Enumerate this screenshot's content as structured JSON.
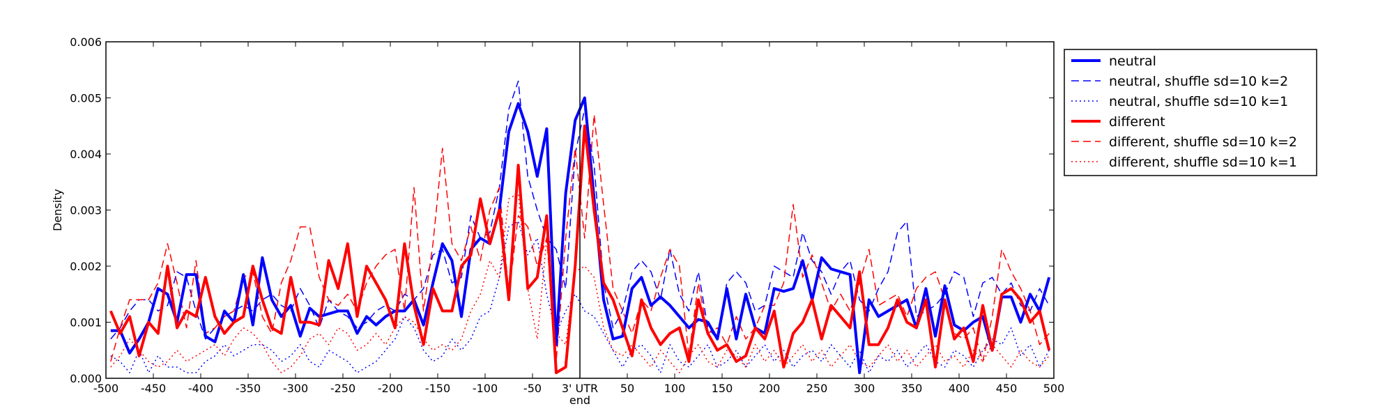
{
  "chart_data": {
    "type": "line",
    "xlabel": "end",
    "ylabel": "Density",
    "xlim": [
      -500,
      500
    ],
    "ylim": [
      0,
      0.006
    ],
    "grid": false,
    "legend_position": "outside-right-top",
    "x_ticks": [
      -500,
      -450,
      -400,
      -350,
      -300,
      -250,
      -200,
      -150,
      -100,
      -50,
      0,
      50,
      100,
      150,
      200,
      250,
      300,
      350,
      400,
      450,
      500
    ],
    "x_tick_labels": [
      "-500",
      "-450",
      "-400",
      "-350",
      "-300",
      "-250",
      "-200",
      "-150",
      "-100",
      "-50",
      "3' UTR",
      "50",
      "100",
      "150",
      "200",
      "250",
      "300",
      "350",
      "400",
      "450",
      "500"
    ],
    "y_ticks": [
      0,
      0.001,
      0.002,
      0.003,
      0.004,
      0.005,
      0.006
    ],
    "y_tick_labels": [
      "0.000",
      "0.001",
      "0.002",
      "0.003",
      "0.004",
      "0.005",
      "0.006"
    ],
    "vertical_line_x": 0,
    "x": [
      -495,
      -485,
      -475,
      -465,
      -455,
      -445,
      -435,
      -425,
      -415,
      -405,
      -395,
      -385,
      -375,
      -365,
      -355,
      -345,
      -335,
      -325,
      -315,
      -305,
      -295,
      -285,
      -275,
      -265,
      -255,
      -245,
      -235,
      -225,
      -215,
      -205,
      -195,
      -185,
      -175,
      -165,
      -155,
      -145,
      -135,
      -125,
      -115,
      -105,
      -95,
      -85,
      -75,
      -65,
      -55,
      -45,
      -35,
      -25,
      -15,
      -5,
      5,
      15,
      25,
      35,
      45,
      55,
      65,
      75,
      85,
      95,
      105,
      115,
      125,
      135,
      145,
      155,
      165,
      175,
      185,
      195,
      205,
      215,
      225,
      235,
      245,
      255,
      265,
      275,
      285,
      295,
      305,
      315,
      325,
      335,
      345,
      355,
      365,
      375,
      385,
      395,
      405,
      415,
      425,
      435,
      445,
      455,
      465,
      475,
      485,
      495
    ],
    "series": [
      {
        "name": "neutral",
        "color": "#0000ff",
        "style": "solid",
        "width": 4,
        "values": [
          0.00085,
          0.00085,
          0.00045,
          0.0007,
          0.001,
          0.0016,
          0.0015,
          0.001,
          0.00185,
          0.00185,
          0.00075,
          0.00065,
          0.0012,
          0.001,
          0.00185,
          0.00095,
          0.00215,
          0.0014,
          0.0011,
          0.0013,
          0.00075,
          0.00125,
          0.0011,
          0.00115,
          0.0012,
          0.0012,
          0.0008,
          0.0011,
          0.00095,
          0.0011,
          0.0012,
          0.0012,
          0.0014,
          0.00095,
          0.0017,
          0.0024,
          0.0021,
          0.0011,
          0.0023,
          0.0025,
          0.0024,
          0.003,
          0.0044,
          0.0049,
          0.0044,
          0.0036,
          0.00445,
          0.0006,
          0.0033,
          0.0046,
          0.005,
          0.0032,
          0.0014,
          0.0007,
          0.00075,
          0.0016,
          0.0018,
          0.0013,
          0.00145,
          0.0013,
          0.0011,
          0.0009,
          0.00105,
          0.001,
          0.0007,
          0.0016,
          0.0007,
          0.0015,
          0.0009,
          0.0008,
          0.0016,
          0.00155,
          0.0016,
          0.0021,
          0.0014,
          0.00215,
          0.00195,
          0.0019,
          0.00185,
          0.0001,
          0.0014,
          0.0011,
          0.0012,
          0.0013,
          0.0014,
          0.0009,
          0.0016,
          0.00075,
          0.00165,
          0.00095,
          0.00085,
          0.001,
          0.0011,
          0.0005,
          0.00145,
          0.00145,
          0.001,
          0.0015,
          0.0012,
          0.0018
        ]
      },
      {
        "name": "neutral, shuffle sd=10 k=2",
        "color": "#0000ff",
        "style": "dashed",
        "width": 1.5,
        "values": [
          0.0007,
          0.0009,
          0.0012,
          0.0014,
          0.0014,
          0.0012,
          0.0013,
          0.0019,
          0.0018,
          0.0012,
          0.0007,
          0.0009,
          0.0011,
          0.0012,
          0.0013,
          0.0012,
          0.0014,
          0.0015,
          0.0013,
          0.0012,
          0.0016,
          0.0013,
          0.0009,
          0.0014,
          0.0012,
          0.0011,
          0.0009,
          0.001,
          0.0012,
          0.0013,
          0.0012,
          0.0015,
          0.0014,
          0.0016,
          0.0022,
          0.0023,
          0.0017,
          0.0018,
          0.0029,
          0.0025,
          0.0026,
          0.0034,
          0.0048,
          0.0053,
          0.0036,
          0.003,
          0.0025,
          0.0023,
          0.0016,
          0.004,
          0.0048,
          0.0038,
          0.0017,
          0.0009,
          0.0012,
          0.0019,
          0.0021,
          0.0019,
          0.0014,
          0.0023,
          0.0015,
          0.0012,
          0.0019,
          0.0009,
          0.0007,
          0.0017,
          0.0019,
          0.0017,
          0.0012,
          0.0013,
          0.002,
          0.0019,
          0.0018,
          0.0026,
          0.0021,
          0.0019,
          0.0015,
          0.0019,
          0.0021,
          0.0014,
          0.0012,
          0.0016,
          0.0019,
          0.0026,
          0.0028,
          0.0011,
          0.0012,
          0.0013,
          0.0015,
          0.0019,
          0.0018,
          0.0011,
          0.0017,
          0.0018,
          0.0015,
          0.0017,
          0.0013,
          0.0012,
          0.0016,
          0.0013
        ]
      },
      {
        "name": "neutral, shuffle sd=10 k=1",
        "color": "#0000ff",
        "style": "dotted",
        "width": 1.5,
        "values": [
          0.0004,
          0.0003,
          0.0001,
          0.0005,
          0.0001,
          0.0004,
          0.0002,
          0.0002,
          0.0001,
          0.0001,
          0.0003,
          0.0004,
          0.0006,
          0.0004,
          0.0005,
          0.0006,
          0.0006,
          0.0005,
          0.0003,
          0.0004,
          0.0006,
          0.0003,
          0.0002,
          0.0005,
          0.0004,
          0.0003,
          0.0001,
          0.0002,
          0.0003,
          0.0005,
          0.0007,
          0.0011,
          0.0009,
          0.0005,
          0.0003,
          0.0004,
          0.0007,
          0.0005,
          0.0007,
          0.0011,
          0.0012,
          0.0018,
          0.0027,
          0.0028,
          0.0022,
          0.0025,
          0.0015,
          0.0008,
          0.0012,
          0.0015,
          0.0012,
          0.0011,
          0.0008,
          0.0005,
          0.0002,
          0.0005,
          0.0006,
          0.0004,
          0.0001,
          0.0006,
          0.0003,
          0.0002,
          0.0004,
          0.0006,
          0.0002,
          0.0003,
          0.0005,
          0.0002,
          0.0004,
          0.0006,
          0.0003,
          0.0005,
          0.0002,
          0.0004,
          0.0005,
          0.0003,
          0.0006,
          0.0004,
          0.0002,
          0.0005,
          0.0001,
          0.0004,
          0.0003,
          0.0005,
          0.0002,
          0.0004,
          0.0006,
          0.0003,
          0.0002,
          0.0005,
          0.0004,
          0.0002,
          0.0005,
          0.0007,
          0.0006,
          0.0009,
          0.0004,
          0.0006,
          0.0002,
          0.0005
        ]
      },
      {
        "name": "different",
        "color": "#ff0000",
        "style": "solid",
        "width": 4,
        "values": [
          0.0012,
          0.0008,
          0.0011,
          0.0004,
          0.001,
          0.0008,
          0.002,
          0.0009,
          0.0012,
          0.0011,
          0.0018,
          0.0011,
          0.0008,
          0.001,
          0.0011,
          0.002,
          0.0014,
          0.0009,
          0.0008,
          0.0018,
          0.001,
          0.001,
          0.00095,
          0.0021,
          0.0016,
          0.0024,
          0.0011,
          0.002,
          0.0017,
          0.0014,
          0.0009,
          0.0024,
          0.0013,
          0.0006,
          0.0016,
          0.0012,
          0.0012,
          0.002,
          0.0022,
          0.0032,
          0.0024,
          0.003,
          0.0014,
          0.0038,
          0.0016,
          0.0018,
          0.0029,
          0.0001,
          0.0002,
          0.002,
          0.0045,
          0.003,
          0.0017,
          0.0014,
          0.0009,
          0.0004,
          0.0014,
          0.0009,
          0.0006,
          0.0008,
          0.0009,
          0.0003,
          0.0014,
          0.0008,
          0.0005,
          0.0006,
          0.0003,
          0.0004,
          0.0009,
          0.0007,
          0.0012,
          0.0002,
          0.0008,
          0.001,
          0.0014,
          0.0007,
          0.0013,
          0.0011,
          0.0009,
          0.0019,
          0.0006,
          0.0006,
          0.0009,
          0.0014,
          0.001,
          0.0009,
          0.0014,
          0.0002,
          0.0014,
          0.0007,
          0.0009,
          0.0003,
          0.0013,
          0.0005,
          0.0015,
          0.0016,
          0.0014,
          0.001,
          0.0012,
          0.0005
        ]
      },
      {
        "name": "different, shuffle sd=10 k=2",
        "color": "#ff0000",
        "style": "dashed",
        "width": 1.5,
        "values": [
          0.0003,
          0.0009,
          0.0014,
          0.0014,
          0.0014,
          0.0017,
          0.0024,
          0.0017,
          0.0009,
          0.0021,
          0.0008,
          0.0009,
          0.0011,
          0.0012,
          0.0018,
          0.0019,
          0.0011,
          0.0008,
          0.0017,
          0.0021,
          0.0027,
          0.0027,
          0.0018,
          0.0014,
          0.0013,
          0.0015,
          0.0012,
          0.0017,
          0.002,
          0.0022,
          0.0023,
          0.0012,
          0.0034,
          0.0012,
          0.0024,
          0.0041,
          0.0024,
          0.0021,
          0.0027,
          0.0021,
          0.003,
          0.0034,
          0.0015,
          0.0029,
          0.0027,
          0.002,
          0.0025,
          0.0003,
          0.0025,
          0.0041,
          0.0025,
          0.0047,
          0.0031,
          0.0016,
          0.0012,
          0.0008,
          0.0014,
          0.0012,
          0.0018,
          0.0023,
          0.002,
          0.0004,
          0.0017,
          0.0008,
          0.0009,
          0.0006,
          0.0011,
          0.0007,
          0.0009,
          0.0013,
          0.0013,
          0.0017,
          0.0031,
          0.0018,
          0.0022,
          0.0017,
          0.0012,
          0.0015,
          0.0012,
          0.0017,
          0.0023,
          0.0013,
          0.0014,
          0.0015,
          0.0011,
          0.0016,
          0.0018,
          0.0019,
          0.0014,
          0.0008,
          0.0007,
          0.0009,
          0.0003,
          0.0011,
          0.0023,
          0.0019,
          0.0016,
          0.0012,
          0.0006,
          0.0008
        ]
      },
      {
        "name": "different, shuffle sd=10 k=1",
        "color": "#ff0000",
        "style": "dotted",
        "width": 1.5,
        "values": [
          0.0002,
          0.0004,
          0.0007,
          0.0005,
          0.0003,
          0.0002,
          0.0003,
          0.0005,
          0.0003,
          0.0004,
          0.0005,
          0.0006,
          0.0004,
          0.0007,
          0.0009,
          0.0008,
          0.0006,
          0.0003,
          0.0001,
          0.0002,
          0.0004,
          0.0007,
          0.0008,
          0.0006,
          0.0009,
          0.0008,
          0.0005,
          0.0006,
          0.0008,
          0.0006,
          0.0009,
          0.0011,
          0.001,
          0.0007,
          0.0005,
          0.0006,
          0.0005,
          0.0007,
          0.0012,
          0.0015,
          0.0021,
          0.0018,
          0.0032,
          0.0033,
          0.0016,
          0.0007,
          0.0025,
          0.0008,
          0.0006,
          0.0019,
          0.002,
          0.0018,
          0.0009,
          0.0005,
          0.0004,
          0.0006,
          0.0004,
          0.0002,
          0.0005,
          0.0003,
          0.0001,
          0.0004,
          0.0006,
          0.0003,
          0.0002,
          0.0005,
          0.0004,
          0.0002,
          0.0006,
          0.0003,
          0.0005,
          0.0002,
          0.0004,
          0.0006,
          0.0003,
          0.0005,
          0.0002,
          0.0004,
          0.0006,
          0.0003,
          0.0002,
          0.0004,
          0.0006,
          0.0003,
          0.0005,
          0.0002,
          0.0004,
          0.0006,
          0.0003,
          0.0004,
          0.0002,
          0.0005,
          0.0003,
          0.0006,
          0.0004,
          0.0002,
          0.0005,
          0.0003,
          0.0002,
          0.0004
        ]
      }
    ]
  }
}
